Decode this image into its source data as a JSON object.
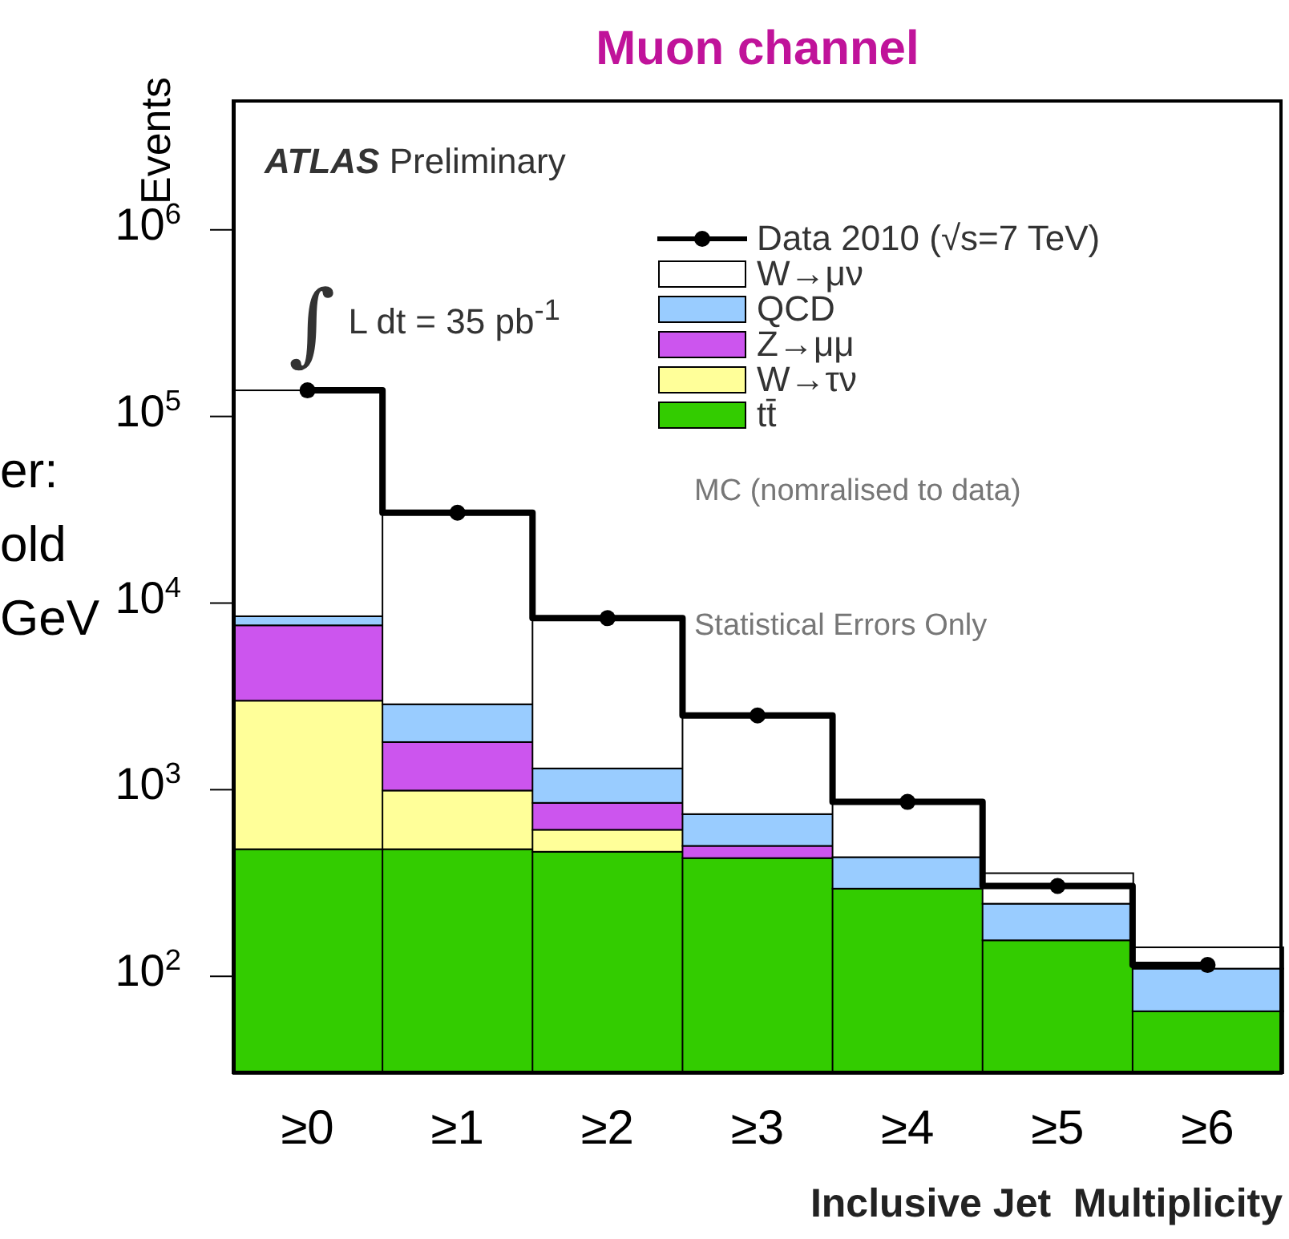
{
  "chart_data": {
    "type": "bar",
    "title": "Muon channel",
    "xlabel": "Inclusive Jet  Multiplicity",
    "ylabel": "Events",
    "categories": [
      "≥0",
      "≥1",
      "≥2",
      "≥3",
      "≥4",
      "≥5",
      "≥6"
    ],
    "stacked": true,
    "log": "y",
    "ylim": [
      30,
      5000000
    ],
    "yticks": [
      {
        "value": 100,
        "label": "10$^{2}$"
      },
      {
        "value": 1000,
        "label": "10$^{3}$"
      },
      {
        "value": 10000,
        "label": "10$^{4}$"
      },
      {
        "value": 100000,
        "label": "10$^{5}$"
      },
      {
        "value": 1000000,
        "label": "10$^{6}$"
      }
    ],
    "grid": false,
    "legend": "top right",
    "marker": "circle",
    "series": [
      {
        "name": "Data 2010 (√s=7 TeV)",
        "type": "step",
        "color": "#000000",
        "values": [
          138000,
          30500,
          8300,
          2500,
          860,
          305,
          115
        ]
      },
      {
        "name": "tt̄",
        "color": "#33cc00",
        "values": [
          480,
          480,
          465,
          430,
          295,
          156,
          65
        ]
      },
      {
        "name": "W→τν",
        "color": "#ffff99",
        "values": [
          2520,
          510,
          145,
          null,
          null,
          null,
          null
        ]
      },
      {
        "name": "Z→μμ",
        "color": "#cc55ee",
        "values": [
          4600,
          810,
          240,
          70,
          null,
          null,
          null
        ]
      },
      {
        "name": "QCD",
        "color": "#99ccff",
        "values": [
          900,
          1070,
          450,
          240,
          140,
          89,
          45
        ]
      },
      {
        "name": "W→μν",
        "color": "#ffffff",
        "values": [
          129500,
          27630,
          7000,
          1740,
          420,
          112,
          33
        ]
      }
    ],
    "annotations": [
      "ATLAS Preliminary",
      "∫L dt = 35 pb$^{-1}$",
      "MC (nomralised to data)",
      "Statistical Errors Only",
      "er:",
      "old",
      "GeV"
    ]
  }
}
